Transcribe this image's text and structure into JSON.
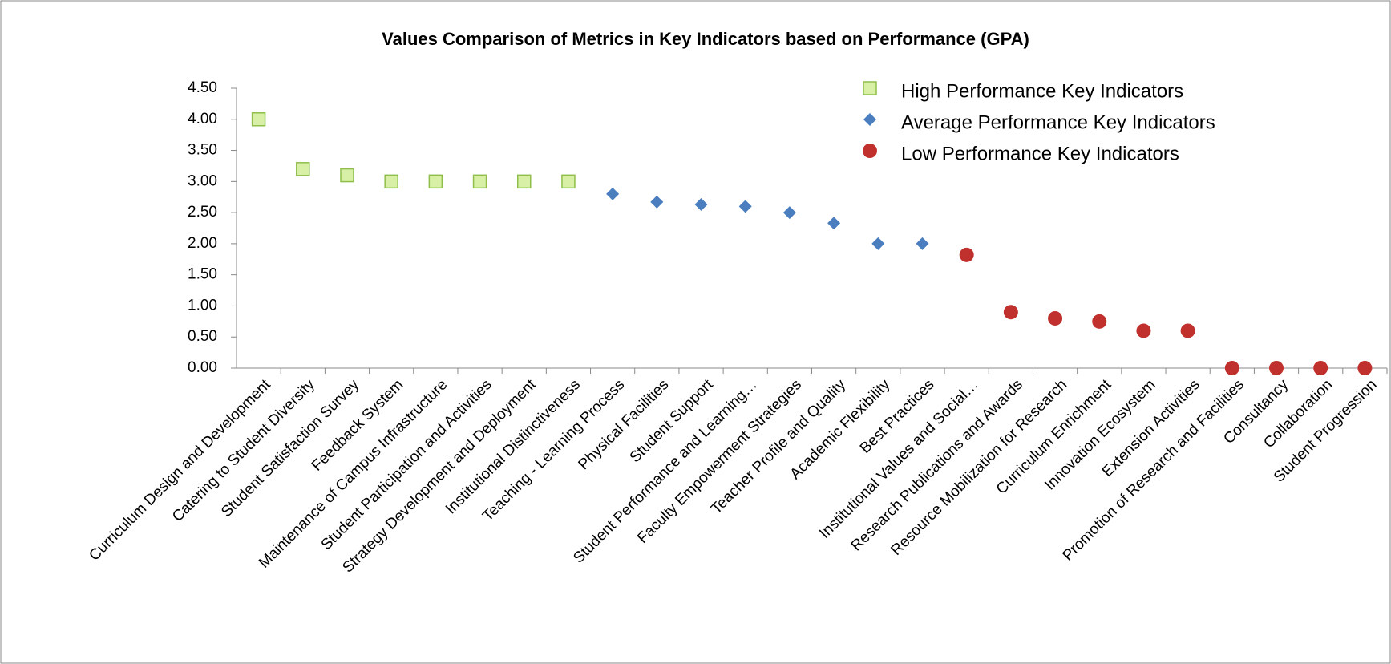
{
  "chart_data": {
    "type": "scatter",
    "title": "Values Comparison of Metrics in Key Indicators based on Performance (GPA)",
    "categories": [
      "Curriculum Design and Development",
      "Catering to Student Diversity",
      "Student Satisfaction Survey",
      "Feedback System",
      "Maintenance of Campus Infrastructure",
      "Student Participation and Activities",
      "Strategy Development and Deployment",
      "Institutional Distinctiveness",
      "Teaching - Learning Process",
      "Physical Facilities",
      "Student Support",
      "Student Performance and Learning…",
      "Faculty Empowerment Strategies",
      "Teacher Profile and Quality",
      "Academic Flexibility",
      "Best Practices",
      "Institutional Values and Social…",
      "Research Publications and Awards",
      "Resource Mobilization for Research",
      "Curriculum Enrichment",
      "Innovation Ecosystem",
      "Extension Activities",
      "Promotion of Research and Facilities",
      "Consultancy",
      "Collaboration",
      "Student Progression"
    ],
    "series": [
      {
        "name": "High Performance Key Indicators",
        "color": "#d7f0a6",
        "marker": "square",
        "values": [
          4.0,
          3.2,
          3.1,
          3.0,
          3.0,
          3.0,
          3.0,
          3.0,
          null,
          null,
          null,
          null,
          null,
          null,
          null,
          null,
          null,
          null,
          null,
          null,
          null,
          null,
          null,
          null,
          null,
          null
        ]
      },
      {
        "name": "Average Performance Key Indicators",
        "color": "#4a7ebf",
        "marker": "diamond",
        "values": [
          null,
          null,
          null,
          null,
          null,
          null,
          null,
          null,
          2.8,
          2.67,
          2.63,
          2.6,
          2.5,
          2.33,
          2.0,
          2.0,
          null,
          null,
          null,
          null,
          null,
          null,
          null,
          null,
          null,
          null
        ]
      },
      {
        "name": "Low Performance Key Indicators",
        "color": "#c0302d",
        "marker": "circle",
        "values": [
          null,
          null,
          null,
          null,
          null,
          null,
          null,
          null,
          null,
          null,
          null,
          null,
          null,
          null,
          null,
          null,
          1.82,
          0.9,
          0.8,
          0.75,
          0.6,
          0.6,
          0,
          0,
          0,
          0
        ]
      }
    ],
    "ylim": [
      0,
      4.5
    ],
    "yticks": [
      {
        "value": 0,
        "label": "0.00"
      },
      {
        "value": 0.5,
        "label": "0.50"
      },
      {
        "value": 1,
        "label": "1.00"
      },
      {
        "value": 1.5,
        "label": "1.50"
      },
      {
        "value": 2,
        "label": "2.00"
      },
      {
        "value": 2.5,
        "label": "2.50"
      },
      {
        "value": 3,
        "label": "3.00"
      },
      {
        "value": 3.5,
        "label": "3.50"
      },
      {
        "value": 4,
        "label": "4.00"
      },
      {
        "value": 4.5,
        "label": "4.50"
      }
    ]
  }
}
